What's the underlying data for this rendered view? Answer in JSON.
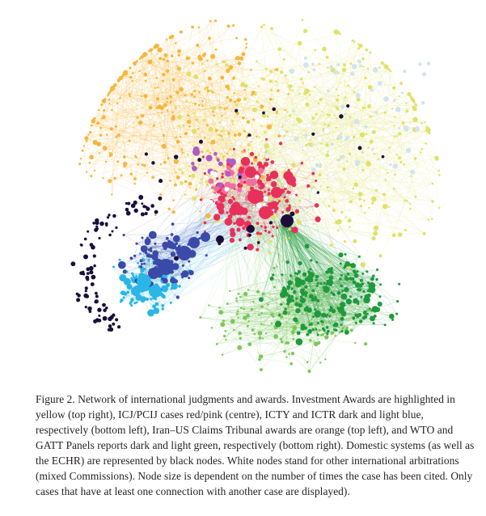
{
  "figure": {
    "label": "Figure 2.",
    "caption": "Network of international judgments and awards. Investment Awards are highlighted in yellow (top right), ICJ/PCIJ cases red/pink (centre), ICTY and ICTR dark and light blue, respectively (bottom left), Iran–US Claims Tribunal awards are orange (top left), and WTO and GATT Panels reports dark and light green, respectively (bottom right). Domestic systems (as well as the ECHR) are represented by black nodes. White nodes stand for other international arbitrations (mixed Commissions). Node size is dependent on the number of times the case has been cited. Only cases that have at least one connection with another case are displayed)."
  },
  "network": {
    "clusters": [
      {
        "name": "Investment Awards",
        "color": "#dfe26a",
        "region": "top right"
      },
      {
        "name": "ICJ/PCIJ",
        "color": "#e8305a",
        "region": "centre"
      },
      {
        "name": "ICTY",
        "color": "#3a4aa8",
        "region": "bottom left"
      },
      {
        "name": "ICTR",
        "color": "#2ab6e6",
        "region": "bottom left"
      },
      {
        "name": "Iran–US Claims Tribunal",
        "color": "#f7b63c",
        "region": "top left"
      },
      {
        "name": "WTO",
        "color": "#1f9a3c",
        "region": "bottom right"
      },
      {
        "name": "GATT Panels",
        "color": "#7cc85c",
        "region": "bottom right"
      },
      {
        "name": "Domestic systems / ECHR",
        "color": "#1a0f3a",
        "region": "scattered"
      },
      {
        "name": "Other international arbitrations",
        "color": "#ffffff",
        "region": "scattered"
      }
    ]
  }
}
